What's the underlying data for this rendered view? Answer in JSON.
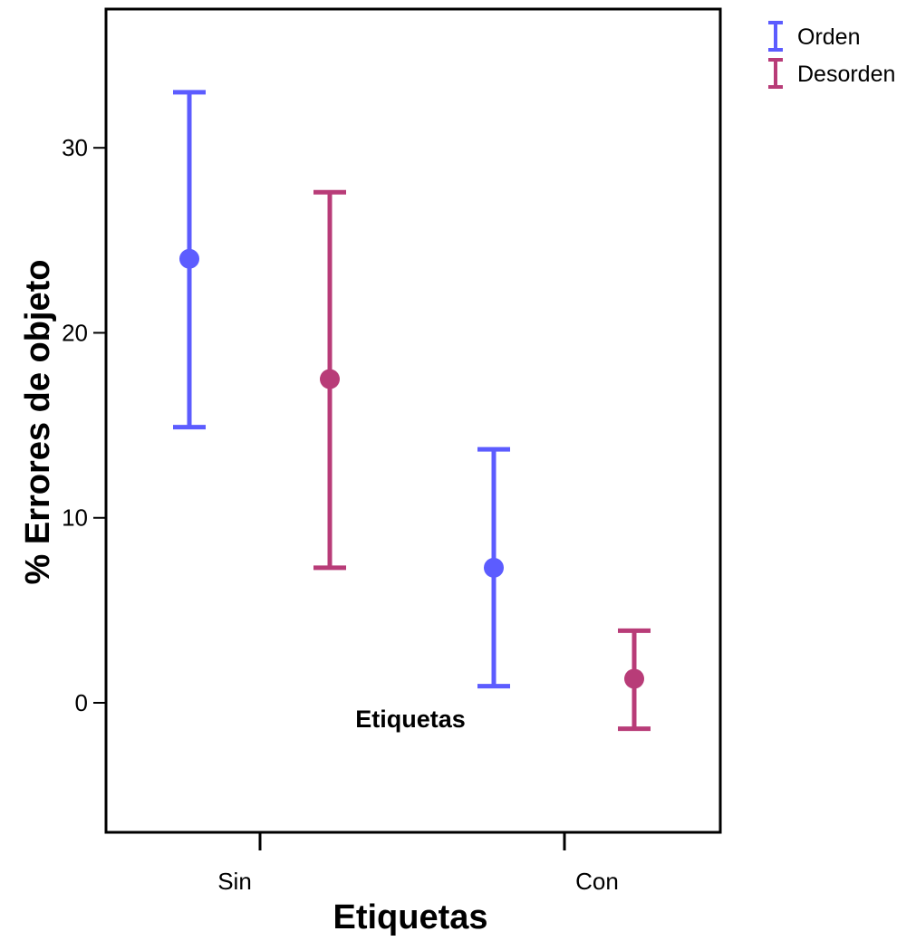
{
  "chart_data": {
    "type": "errorbar",
    "xlabel": "Etiquetas",
    "ylabel": "% Errores de objeto",
    "annotation": "Etiquetas",
    "categories": [
      "Sin",
      "Con"
    ],
    "ylim": [
      -7,
      37.5
    ],
    "yticks": [
      0,
      10,
      20,
      30
    ],
    "legend_position": "top-right, outside plot",
    "grid": false,
    "series": [
      {
        "name": "Orden",
        "color": "#5c5cff",
        "points": [
          {
            "category": "Sin",
            "mean": 24.0,
            "lower": 14.9,
            "upper": 33.0
          },
          {
            "category": "Con",
            "mean": 7.3,
            "lower": 0.9,
            "upper": 13.7
          }
        ]
      },
      {
        "name": "Desorden",
        "color": "#b83c78",
        "points": [
          {
            "category": "Sin",
            "mean": 17.5,
            "lower": 7.3,
            "upper": 27.6
          },
          {
            "category": "Con",
            "mean": 1.3,
            "lower": -1.4,
            "upper": 3.9
          }
        ]
      }
    ]
  }
}
